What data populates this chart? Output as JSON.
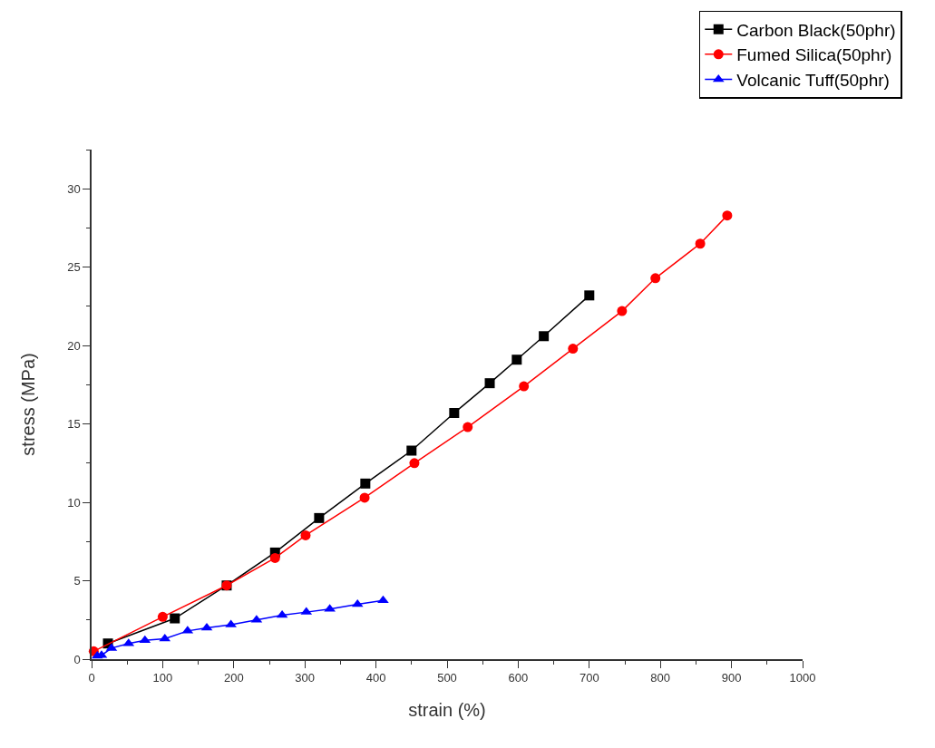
{
  "chart_data": {
    "type": "line",
    "xlabel": "strain (%)",
    "ylabel": "stress (MPa)",
    "xlim": [
      0,
      1000
    ],
    "xticks": [
      0,
      100,
      200,
      300,
      400,
      500,
      600,
      700,
      800,
      900,
      1000
    ],
    "ylim": [
      0,
      32.5
    ],
    "yticks": [
      0,
      5,
      10,
      15,
      20,
      25,
      30
    ],
    "grid": false,
    "legend": "top right",
    "series": [
      {
        "name": "Carbon Black(50phr)",
        "color": "#000000",
        "marker": "square",
        "x": [
          23,
          117,
          190,
          258,
          320,
          385,
          450,
          510,
          560,
          598,
          636,
          700
        ],
        "values": [
          1.0,
          2.6,
          4.7,
          6.8,
          9.0,
          11.2,
          13.3,
          15.7,
          17.6,
          19.1,
          20.6,
          23.2
        ]
      },
      {
        "name": "Fumed Silica(50phr)",
        "color": "#ff0000",
        "marker": "circle",
        "x": [
          3,
          100,
          190,
          258,
          301,
          384,
          454,
          529,
          608,
          677,
          746,
          793,
          856,
          894
        ],
        "values": [
          0.5,
          2.7,
          4.7,
          6.45,
          7.9,
          10.3,
          12.5,
          14.8,
          17.4,
          19.8,
          22.2,
          24.3,
          26.5,
          28.3
        ]
      },
      {
        "name": "Volcanic Tuff(50phr)",
        "color": "#0000ff",
        "marker": "triangle",
        "x": [
          8,
          14,
          28,
          52,
          75,
          103,
          135,
          162,
          196,
          232,
          268,
          302,
          335,
          374,
          410
        ],
        "values": [
          0.2,
          0.25,
          0.7,
          1.0,
          1.2,
          1.3,
          1.8,
          2.0,
          2.2,
          2.5,
          2.8,
          3.0,
          3.2,
          3.5,
          3.75
        ]
      }
    ]
  }
}
